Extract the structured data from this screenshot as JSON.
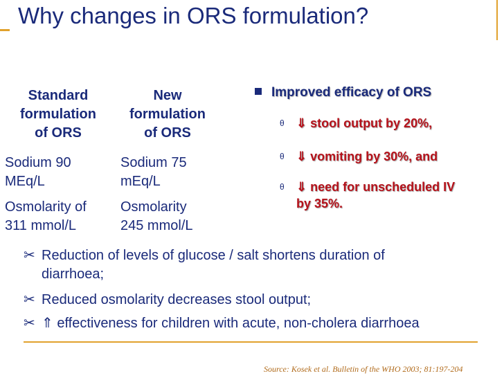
{
  "slide": {
    "title": "Why changes in ORS formulation?",
    "table": {
      "col1_header": "Standard\nformulation\nof ORS",
      "col2_header": "New\nformulation\nof ORS",
      "row1": {
        "standard": "Sodium 90\nMEq/L",
        "new": "Sodium 75\nmEq/L"
      },
      "row2": {
        "standard": "Osmolarity of\n311 mmol/L",
        "new": "Osmolarity\n245 mmol/L"
      }
    },
    "efficacy": {
      "heading": "Improved efficacy of ORS",
      "marker": "θ",
      "items": [
        "⇓ stool output by 20%,",
        "⇓ vomiting by 30%, and",
        "⇓ need for unscheduled IV",
        "by 35%."
      ]
    },
    "bullets": {
      "marker": "✂",
      "items": [
        "Reduction of levels of glucose / salt shortens duration of",
        "diarrhoea;",
        "Reduced osmolarity decreases stool output;",
        "⇑ effectiveness for children with acute, non-cholera diarrhoea"
      ]
    },
    "source": "Source: Kosek et al. Bulletin of the WHO 2003; 81:197-204"
  }
}
